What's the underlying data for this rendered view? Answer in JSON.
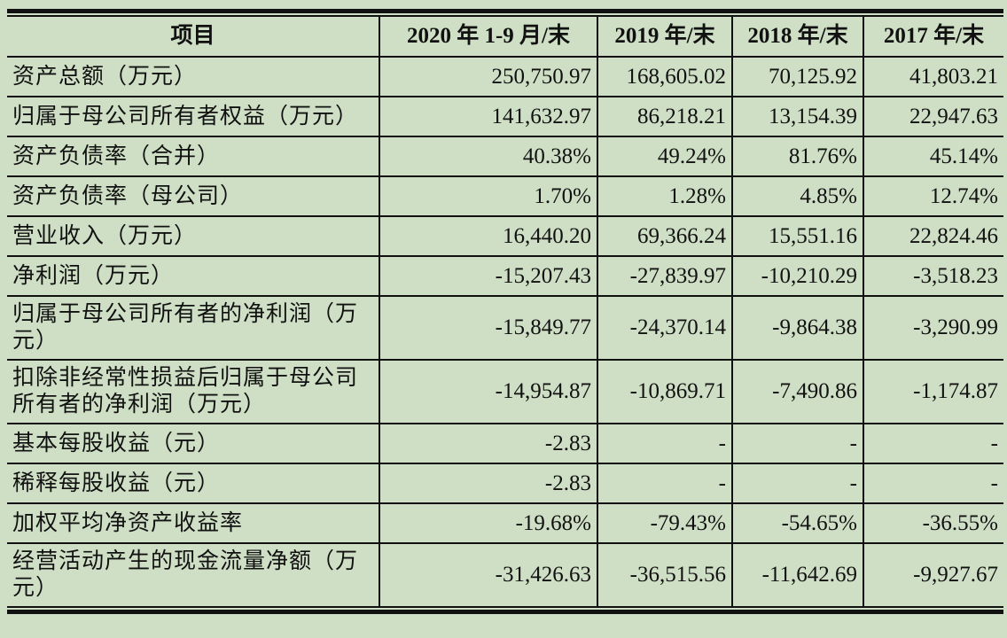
{
  "table": {
    "headers": [
      "项目",
      "2020 年 1-9 月/末",
      "2019 年/末",
      "2018 年/末",
      "2017 年/末"
    ],
    "rows": [
      {
        "label": "资产总额（万元）",
        "values": [
          "250,750.97",
          "168,605.02",
          "70,125.92",
          "41,803.21"
        ]
      },
      {
        "label": "归属于母公司所有者权益（万元）",
        "values": [
          "141,632.97",
          "86,218.21",
          "13,154.39",
          "22,947.63"
        ]
      },
      {
        "label": "资产负债率（合并）",
        "values": [
          "40.38%",
          "49.24%",
          "81.76%",
          "45.14%"
        ]
      },
      {
        "label": "资产负债率（母公司）",
        "values": [
          "1.70%",
          "1.28%",
          "4.85%",
          "12.74%"
        ]
      },
      {
        "label": "营业收入（万元）",
        "values": [
          "16,440.20",
          "69,366.24",
          "15,551.16",
          "22,824.46"
        ]
      },
      {
        "label": "净利润（万元）",
        "values": [
          "-15,207.43",
          "-27,839.97",
          "-10,210.29",
          "-3,518.23"
        ]
      },
      {
        "label": "归属于母公司所有者的净利润（万元）",
        "values": [
          "-15,849.77",
          "-24,370.14",
          "-9,864.38",
          "-3,290.99"
        ]
      },
      {
        "label": "扣除非经常性损益后归属于母公司所有者的净利润（万元）",
        "values": [
          "-14,954.87",
          "-10,869.71",
          "-7,490.86",
          "-1,174.87"
        ]
      },
      {
        "label": "基本每股收益（元）",
        "values": [
          "-2.83",
          "-",
          "-",
          "-"
        ]
      },
      {
        "label": "稀释每股收益（元）",
        "values": [
          "-2.83",
          "-",
          "-",
          "-"
        ]
      },
      {
        "label": "加权平均净资产收益率",
        "values": [
          "-19.68%",
          "-79.43%",
          "-54.65%",
          "-36.55%"
        ]
      },
      {
        "label": "经营活动产生的现金流量净额（万元）",
        "values": [
          "-31,426.63",
          "-36,515.56",
          "-11,642.69",
          "-9,927.67"
        ]
      }
    ]
  },
  "colors": {
    "background": "#cfdfc5",
    "lines": "#111111"
  }
}
